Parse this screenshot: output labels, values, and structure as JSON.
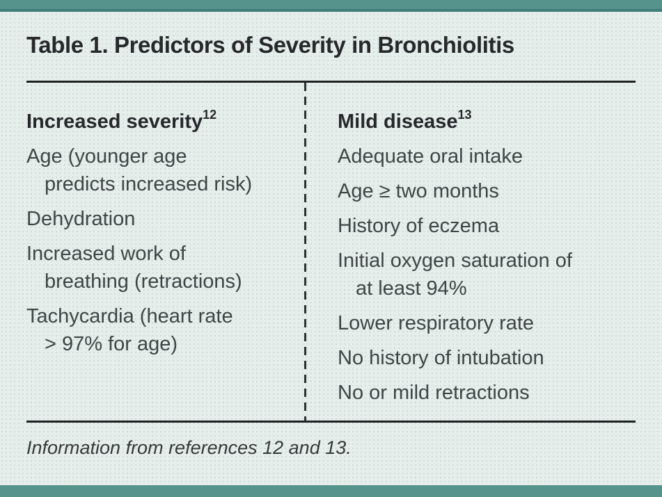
{
  "page": {
    "accent_color": "#55938c",
    "accent_edge_color": "#3f7e77",
    "background_color": "#e6eeeb",
    "rule_color": "#1d2123"
  },
  "table": {
    "title": "Table 1. Predictors of Severity in Bronchiolitis",
    "columns": [
      {
        "header": {
          "text": "Increased severity",
          "ref": "12"
        },
        "items": [
          {
            "lines": [
              "Age (younger age",
              "predicts increased risk)"
            ]
          },
          {
            "lines": [
              "Dehydration"
            ]
          },
          {
            "lines": [
              "Increased work of",
              "breathing (retractions)"
            ]
          },
          {
            "lines": [
              "Tachycardia (heart rate",
              "> 97% for age)"
            ]
          }
        ]
      },
      {
        "header": {
          "text": "Mild disease",
          "ref": "13"
        },
        "items": [
          {
            "lines": [
              "Adequate oral intake"
            ]
          },
          {
            "lines": [
              "Age ≥ two months"
            ]
          },
          {
            "lines": [
              "History of eczema"
            ]
          },
          {
            "lines": [
              "Initial oxygen saturation of",
              "at least 94%"
            ]
          },
          {
            "lines": [
              "Lower respiratory rate"
            ]
          },
          {
            "lines": [
              "No history of intubation"
            ]
          },
          {
            "lines": [
              "No or mild retractions"
            ]
          }
        ]
      }
    ],
    "footnote": "Information from references 12 and 13."
  }
}
